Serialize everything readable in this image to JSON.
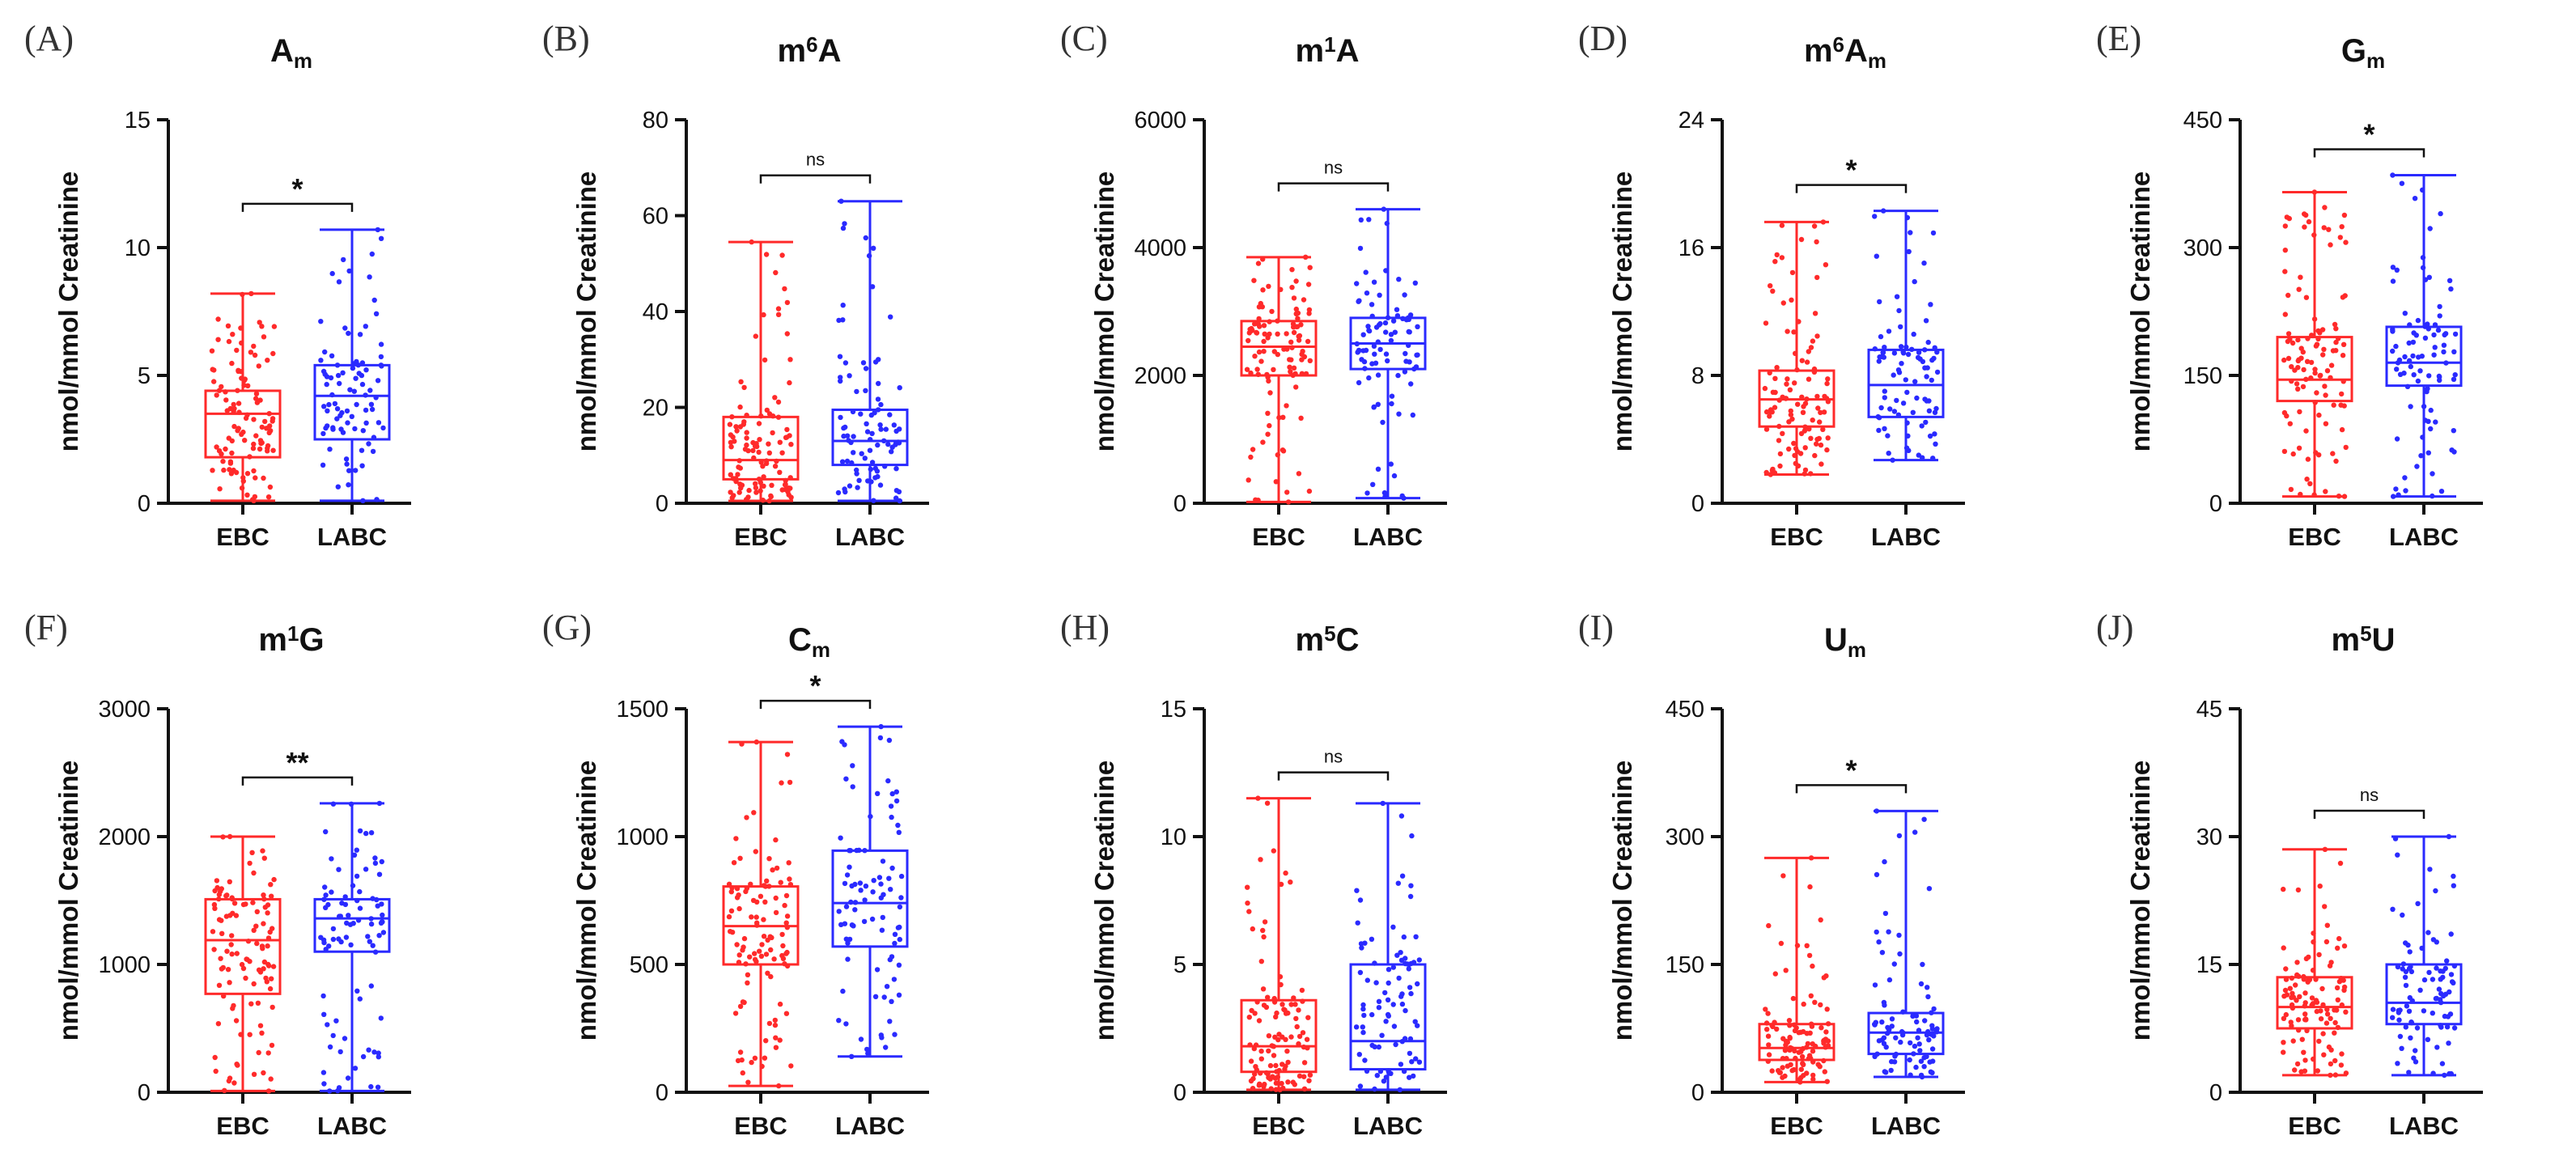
{
  "figure": {
    "colors": {
      "EBC": "#ff2a2a",
      "LABC": "#2a2aff",
      "axis": "#111111"
    }
  },
  "chart_data": [
    {
      "id": "A",
      "type": "box",
      "panel_label": "(A)",
      "title": {
        "main": "A",
        "sub": "m"
      },
      "ylabel": "nmol/mmol Creatinine",
      "ylim": [
        0,
        15
      ],
      "ticks": [
        0,
        5,
        10,
        15
      ],
      "categories": [
        "EBC",
        "LABC"
      ],
      "series": [
        {
          "name": "EBC",
          "min": 0.1,
          "q1": 1.8,
          "median": 3.5,
          "q3": 4.4,
          "max": 8.2,
          "n": 110
        },
        {
          "name": "LABC",
          "min": 0.1,
          "q1": 2.5,
          "median": 4.2,
          "q3": 5.4,
          "max": 10.7,
          "n": 90
        }
      ],
      "significance": "*"
    },
    {
      "id": "B",
      "type": "box",
      "panel_label": "(B)",
      "title": {
        "pre": "m",
        "sup": "6",
        "main": "A"
      },
      "ylabel": "nmol/mmol Creatinine",
      "ylim": [
        0,
        80
      ],
      "ticks": [
        0,
        20,
        40,
        60,
        80
      ],
      "categories": [
        "EBC",
        "LABC"
      ],
      "series": [
        {
          "name": "EBC",
          "min": 0.5,
          "q1": 5,
          "median": 9,
          "q3": 18,
          "max": 54.5,
          "n": 110
        },
        {
          "name": "LABC",
          "min": 0.5,
          "q1": 8,
          "median": 13,
          "q3": 19.5,
          "max": 63,
          "n": 90
        }
      ],
      "significance": "ns"
    },
    {
      "id": "C",
      "type": "box",
      "panel_label": "(C)",
      "title": {
        "pre": "m",
        "sup": "1",
        "main": "A"
      },
      "ylabel": "nmol/mmol Creatinine",
      "ylim": [
        0,
        6000
      ],
      "ticks": [
        0,
        2000,
        4000,
        6000
      ],
      "categories": [
        "EBC",
        "LABC"
      ],
      "series": [
        {
          "name": "EBC",
          "min": 20,
          "q1": 2000,
          "median": 2450,
          "q3": 2850,
          "max": 3850,
          "n": 110
        },
        {
          "name": "LABC",
          "min": 80,
          "q1": 2100,
          "median": 2500,
          "q3": 2900,
          "max": 4600,
          "n": 90
        }
      ],
      "significance": "ns"
    },
    {
      "id": "D",
      "type": "box",
      "panel_label": "(D)",
      "title": {
        "pre": "m",
        "sup": "6",
        "main": "A",
        "sub": "m"
      },
      "ylabel": "nmol/mmol Creatinine",
      "ylim": [
        0,
        24
      ],
      "ticks": [
        0,
        8,
        16,
        24
      ],
      "categories": [
        "EBC",
        "LABC"
      ],
      "series": [
        {
          "name": "EBC",
          "min": 1.8,
          "q1": 4.8,
          "median": 6.5,
          "q3": 8.3,
          "max": 17.6,
          "n": 110
        },
        {
          "name": "LABC",
          "min": 2.7,
          "q1": 5.4,
          "median": 7.4,
          "q3": 9.6,
          "max": 18.3,
          "n": 90
        }
      ],
      "significance": "*"
    },
    {
      "id": "E",
      "type": "box",
      "panel_label": "(E)",
      "title": {
        "main": "G",
        "sub": "m"
      },
      "ylabel": "nmol/mmol Creatinine",
      "ylim": [
        0,
        450
      ],
      "ticks": [
        0,
        150,
        300,
        450
      ],
      "categories": [
        "EBC",
        "LABC"
      ],
      "series": [
        {
          "name": "EBC",
          "min": 8,
          "q1": 120,
          "median": 145,
          "q3": 195,
          "max": 365,
          "n": 110
        },
        {
          "name": "LABC",
          "min": 8,
          "q1": 138,
          "median": 165,
          "q3": 207,
          "max": 385,
          "n": 90
        }
      ],
      "significance": "*"
    },
    {
      "id": "F",
      "type": "box",
      "panel_label": "(F)",
      "title": {
        "pre": "m",
        "sup": "1",
        "main": "G"
      },
      "ylabel": "nmol/mmol Creatinine",
      "ylim": [
        0,
        3000
      ],
      "ticks": [
        0,
        1000,
        2000,
        3000
      ],
      "categories": [
        "EBC",
        "LABC"
      ],
      "series": [
        {
          "name": "EBC",
          "min": 10,
          "q1": 770,
          "median": 1190,
          "q3": 1510,
          "max": 2000,
          "n": 110
        },
        {
          "name": "LABC",
          "min": 10,
          "q1": 1100,
          "median": 1360,
          "q3": 1510,
          "max": 2260,
          "n": 90
        }
      ],
      "significance": "**"
    },
    {
      "id": "G",
      "type": "box",
      "panel_label": "(G)",
      "title": {
        "main": "C",
        "sub": "m"
      },
      "ylabel": "nmol/mmol Creatinine",
      "ylim": [
        0,
        1500
      ],
      "ticks": [
        0,
        500,
        1000,
        1500
      ],
      "categories": [
        "EBC",
        "LABC"
      ],
      "series": [
        {
          "name": "EBC",
          "min": 25,
          "q1": 500,
          "median": 650,
          "q3": 805,
          "max": 1370,
          "n": 110
        },
        {
          "name": "LABC",
          "min": 140,
          "q1": 570,
          "median": 740,
          "q3": 945,
          "max": 1430,
          "n": 90
        }
      ],
      "significance": "*"
    },
    {
      "id": "H",
      "type": "box",
      "panel_label": "(H)",
      "title": {
        "pre": "m",
        "sup": "5",
        "main": "C"
      },
      "ylabel": "nmol/mmol Creatinine",
      "ylim": [
        0,
        15
      ],
      "ticks": [
        0,
        5,
        10,
        15
      ],
      "categories": [
        "EBC",
        "LABC"
      ],
      "series": [
        {
          "name": "EBC",
          "min": 0.1,
          "q1": 0.8,
          "median": 1.8,
          "q3": 3.6,
          "max": 11.5,
          "n": 110
        },
        {
          "name": "LABC",
          "min": 0.1,
          "q1": 0.9,
          "median": 2.0,
          "q3": 5.0,
          "max": 11.3,
          "n": 90
        }
      ],
      "significance": "ns"
    },
    {
      "id": "I",
      "type": "box",
      "panel_label": "(I)",
      "title": {
        "main": "U",
        "sub": "m"
      },
      "ylabel": "nmol/mmol Creatinine",
      "ylim": [
        0,
        450
      ],
      "ticks": [
        0,
        150,
        300,
        450
      ],
      "categories": [
        "EBC",
        "LABC"
      ],
      "series": [
        {
          "name": "EBC",
          "min": 12,
          "q1": 38,
          "median": 52,
          "q3": 80,
          "max": 275,
          "n": 110
        },
        {
          "name": "LABC",
          "min": 18,
          "q1": 45,
          "median": 70,
          "q3": 93,
          "max": 330,
          "n": 90
        }
      ],
      "significance": "*"
    },
    {
      "id": "J",
      "type": "box",
      "panel_label": "(J)",
      "title": {
        "pre": "m",
        "sup": "5",
        "main": "U"
      },
      "ylabel": "nmol/mmol Creatinine",
      "ylim": [
        0,
        45
      ],
      "ticks": [
        0,
        15,
        30,
        45
      ],
      "categories": [
        "EBC",
        "LABC"
      ],
      "series": [
        {
          "name": "EBC",
          "min": 2,
          "q1": 7.5,
          "median": 10,
          "q3": 13.5,
          "max": 28.5,
          "n": 110
        },
        {
          "name": "LABC",
          "min": 2,
          "q1": 8,
          "median": 10.5,
          "q3": 15,
          "max": 30,
          "n": 90
        }
      ],
      "significance": "ns"
    }
  ]
}
